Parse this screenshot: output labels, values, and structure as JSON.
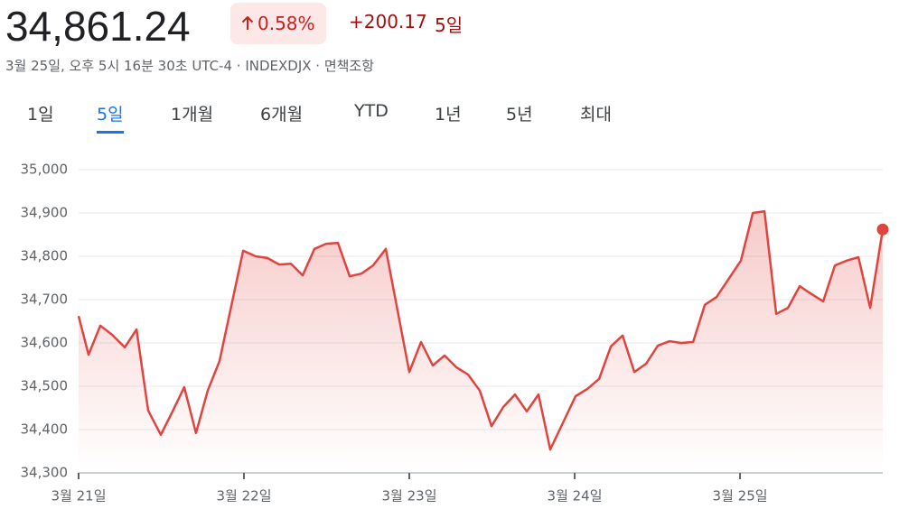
{
  "header": {
    "price": "34,861.24",
    "change_pct": "0.58%",
    "change": "+200.17",
    "period": "5일",
    "subtitle": "3월 25일, 오후 5시 16분 30초 UTC-4 · INDEXDJX · 면책조항"
  },
  "tabs": {
    "items": [
      "1일",
      "5일",
      "1개월",
      "6개월",
      "YTD",
      "1년",
      "5년",
      "최대"
    ],
    "selected": 1
  },
  "chart_data": {
    "type": "line",
    "color": "#e0443e",
    "grid": true,
    "xlim": [
      0,
      4.863
    ],
    "xticks": [
      {
        "value": 0,
        "label": "3월 21일"
      },
      {
        "value": 1,
        "label": "3월 22일"
      },
      {
        "value": 2,
        "label": "3월 23일"
      },
      {
        "value": 3,
        "label": "3월 24일"
      },
      {
        "value": 4,
        "label": "3월 25일"
      }
    ],
    "ylim": [
      34300,
      35000
    ],
    "yticks": [
      {
        "value": 34300,
        "label": "34,300"
      },
      {
        "value": 34400,
        "label": "34,400"
      },
      {
        "value": 34500,
        "label": "34,500"
      },
      {
        "value": 34600,
        "label": "34,600"
      },
      {
        "value": 34700,
        "label": "34,700"
      },
      {
        "value": 34800,
        "label": "34,800"
      },
      {
        "value": 34900,
        "label": "34,900"
      },
      {
        "value": 35000,
        "label": "35,000"
      }
    ],
    "x": [
      0,
      0.06,
      0.131,
      0.202,
      0.279,
      0.35,
      0.421,
      0.497,
      0.568,
      0.639,
      0.71,
      0.781,
      0.852,
      0.995,
      1.071,
      1.142,
      1.213,
      1.284,
      1.355,
      1.426,
      1.497,
      1.568,
      1.639,
      1.71,
      1.781,
      1.858,
      2,
      2.071,
      2.142,
      2.213,
      2.284,
      2.355,
      2.426,
      2.497,
      2.568,
      2.639,
      2.71,
      2.781,
      2.852,
      3.005,
      3.077,
      3.148,
      3.219,
      3.29,
      3.361,
      3.432,
      3.503,
      3.574,
      3.645,
      3.716,
      3.787,
      3.858,
      4.005,
      4.077,
      4.148,
      4.219,
      4.29,
      4.361,
      4.432,
      4.503,
      4.574,
      4.645,
      4.716,
      4.787,
      4.863
    ],
    "values": [
      34662,
      34573,
      34640,
      34619,
      34590,
      34631,
      34444,
      34388,
      34442,
      34498,
      34392,
      34490,
      34558,
      34813,
      34800,
      34796,
      34781,
      34783,
      34756,
      34817,
      34829,
      34831,
      34754,
      34760,
      34779,
      34817,
      34533,
      34602,
      34548,
      34571,
      34544,
      34527,
      34490,
      34408,
      34452,
      34481,
      34442,
      34481,
      34354,
      34477,
      34494,
      34517,
      34592,
      34617,
      34533,
      34552,
      34594,
      34604,
      34600,
      34602,
      34688,
      34706,
      34790,
      34900,
      34904,
      34667,
      34681,
      34731,
      34713,
      34696,
      34779,
      34790,
      34798,
      34681,
      34862
    ]
  }
}
